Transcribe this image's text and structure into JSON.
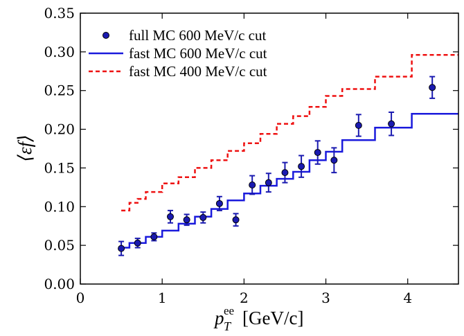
{
  "chart_data": {
    "type": "scatter",
    "xlabel_main": "p",
    "xlabel_sub": "T",
    "xlabel_sup": "ee",
    "xlabel_unit": "[GeV/c]",
    "ylabel": "⟨εf⟩",
    "xlim": [
      0,
      4.62
    ],
    "ylim": [
      0,
      0.35
    ],
    "xticks": [
      0,
      1,
      2,
      3,
      4
    ],
    "yticks": [
      "0.00",
      "0.05",
      "0.10",
      "0.15",
      "0.20",
      "0.25",
      "0.30",
      "0.35"
    ],
    "legend_position": "top-left",
    "series": [
      {
        "name": "full MC 600 MeV/c cut",
        "kind": "points",
        "color": "#1a1ab0",
        "edge": "#000000",
        "points": [
          {
            "x": 0.5,
            "y": 0.046,
            "err": 0.009
          },
          {
            "x": 0.7,
            "y": 0.053,
            "err": 0.006
          },
          {
            "x": 0.9,
            "y": 0.061,
            "err": 0.005
          },
          {
            "x": 1.1,
            "y": 0.087,
            "err": 0.008
          },
          {
            "x": 1.3,
            "y": 0.083,
            "err": 0.007
          },
          {
            "x": 1.5,
            "y": 0.086,
            "err": 0.007
          },
          {
            "x": 1.7,
            "y": 0.104,
            "err": 0.009
          },
          {
            "x": 1.9,
            "y": 0.083,
            "err": 0.008
          },
          {
            "x": 2.1,
            "y": 0.128,
            "err": 0.012
          },
          {
            "x": 2.3,
            "y": 0.131,
            "err": 0.012
          },
          {
            "x": 2.5,
            "y": 0.144,
            "err": 0.013
          },
          {
            "x": 2.7,
            "y": 0.152,
            "err": 0.014
          },
          {
            "x": 2.9,
            "y": 0.17,
            "err": 0.015
          },
          {
            "x": 3.1,
            "y": 0.16,
            "err": 0.016
          },
          {
            "x": 3.4,
            "y": 0.205,
            "err": 0.014
          },
          {
            "x": 3.8,
            "y": 0.207,
            "err": 0.015
          },
          {
            "x": 4.3,
            "y": 0.254,
            "err": 0.014
          }
        ]
      },
      {
        "name": "fast MC 600 MeV/c cut",
        "kind": "step",
        "color": "#1a1adc",
        "dash": false,
        "steps": [
          {
            "x0": 0.5,
            "x1": 0.6,
            "y": 0.047
          },
          {
            "x0": 0.6,
            "x1": 0.8,
            "y": 0.053
          },
          {
            "x0": 0.8,
            "x1": 1.0,
            "y": 0.061
          },
          {
            "x0": 1.0,
            "x1": 1.2,
            "y": 0.069
          },
          {
            "x0": 1.2,
            "x1": 1.4,
            "y": 0.078
          },
          {
            "x0": 1.4,
            "x1": 1.6,
            "y": 0.087
          },
          {
            "x0": 1.6,
            "x1": 1.8,
            "y": 0.097
          },
          {
            "x0": 1.8,
            "x1": 2.0,
            "y": 0.108
          },
          {
            "x0": 2.0,
            "x1": 2.2,
            "y": 0.117
          },
          {
            "x0": 2.2,
            "x1": 2.4,
            "y": 0.127
          },
          {
            "x0": 2.4,
            "x1": 2.6,
            "y": 0.136
          },
          {
            "x0": 2.6,
            "x1": 2.8,
            "y": 0.145
          },
          {
            "x0": 2.8,
            "x1": 3.0,
            "y": 0.16
          },
          {
            "x0": 3.0,
            "x1": 3.2,
            "y": 0.171
          },
          {
            "x0": 3.2,
            "x1": 3.6,
            "y": 0.186
          },
          {
            "x0": 3.6,
            "x1": 4.05,
            "y": 0.202
          },
          {
            "x0": 4.05,
            "x1": 4.62,
            "y": 0.22
          }
        ]
      },
      {
        "name": "fast MC 400 MeV/c cut",
        "kind": "step",
        "color": "#ee1111",
        "dash": true,
        "steps": [
          {
            "x0": 0.5,
            "x1": 0.6,
            "y": 0.095
          },
          {
            "x0": 0.6,
            "x1": 0.7,
            "y": 0.105
          },
          {
            "x0": 0.7,
            "x1": 0.8,
            "y": 0.11
          },
          {
            "x0": 0.8,
            "x1": 1.0,
            "y": 0.119
          },
          {
            "x0": 1.0,
            "x1": 1.2,
            "y": 0.13
          },
          {
            "x0": 1.2,
            "x1": 1.4,
            "y": 0.138
          },
          {
            "x0": 1.4,
            "x1": 1.6,
            "y": 0.15
          },
          {
            "x0": 1.6,
            "x1": 1.8,
            "y": 0.16
          },
          {
            "x0": 1.8,
            "x1": 2.0,
            "y": 0.172
          },
          {
            "x0": 2.0,
            "x1": 2.2,
            "y": 0.182
          },
          {
            "x0": 2.2,
            "x1": 2.4,
            "y": 0.194
          },
          {
            "x0": 2.4,
            "x1": 2.6,
            "y": 0.207
          },
          {
            "x0": 2.6,
            "x1": 2.8,
            "y": 0.217
          },
          {
            "x0": 2.8,
            "x1": 3.0,
            "y": 0.229
          },
          {
            "x0": 3.0,
            "x1": 3.2,
            "y": 0.243
          },
          {
            "x0": 3.2,
            "x1": 3.6,
            "y": 0.252
          },
          {
            "x0": 3.6,
            "x1": 4.05,
            "y": 0.268
          },
          {
            "x0": 4.05,
            "x1": 4.62,
            "y": 0.296
          }
        ]
      }
    ]
  }
}
